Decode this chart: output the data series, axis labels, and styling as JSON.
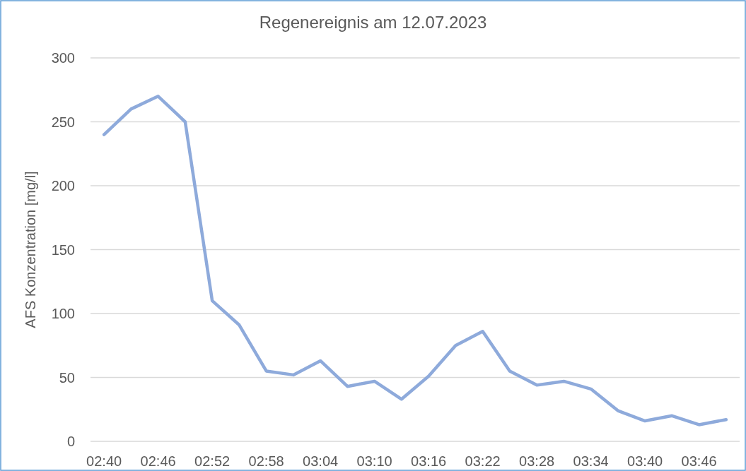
{
  "chart_data": {
    "type": "line",
    "title": "Regenereignis am 12.07.2023",
    "ylabel": "AFS Konzentration  [mg/l]",
    "categories": [
      "02:40",
      null,
      "02:46",
      null,
      "02:52",
      null,
      "02:58",
      null,
      "03:04",
      null,
      "03:10",
      null,
      "03:16",
      null,
      "03:22",
      null,
      "03:28",
      null,
      "03:34",
      null,
      "03:40",
      null,
      "03:46",
      null
    ],
    "series": [
      {
        "color": "#8eaadb",
        "values": [
          240,
          260,
          270,
          250,
          110,
          91,
          55,
          52,
          63,
          43,
          47,
          33,
          51,
          75,
          86,
          55,
          44,
          47,
          41,
          24,
          16,
          20,
          13,
          17
        ]
      }
    ],
    "ylim": [
      0,
      300
    ],
    "yticks": [
      0,
      50,
      100,
      150,
      200,
      250,
      300
    ],
    "grid": "y",
    "marker": "none",
    "line_style": "solid"
  }
}
